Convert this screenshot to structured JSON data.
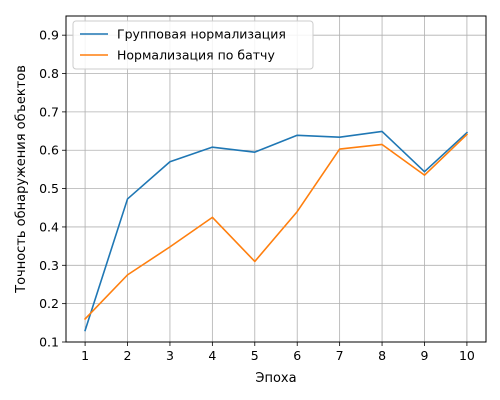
{
  "chart_data": {
    "type": "line",
    "title": "",
    "xlabel": "Эпоха",
    "ylabel": "Точность обнаружения объектов",
    "x": [
      1,
      2,
      3,
      4,
      5,
      6,
      7,
      8,
      9,
      10
    ],
    "x_tick_labels": [
      "1",
      "2",
      "3",
      "4",
      "5",
      "6",
      "7",
      "8",
      "9",
      "10"
    ],
    "xlim": [
      0.55,
      10.45
    ],
    "ylim": [
      0.1,
      0.95
    ],
    "y_ticks": [
      0.1,
      0.2,
      0.3,
      0.4,
      0.5,
      0.6,
      0.7,
      0.8,
      0.9
    ],
    "y_tick_labels": [
      "0.1",
      "0.2",
      "0.3",
      "0.4",
      "0.5",
      "0.6",
      "0.7",
      "0.8",
      "0.9"
    ],
    "grid": true,
    "legend_position": "top-left",
    "series": [
      {
        "name": "Групповая нормализация",
        "color": "#1f77b4",
        "values": [
          0.13,
          0.473,
          0.57,
          0.608,
          0.595,
          0.639,
          0.634,
          0.649,
          0.544,
          0.646
        ]
      },
      {
        "name": "Нормализация по батчу",
        "color": "#ff7f0e",
        "values": [
          0.16,
          0.275,
          0.348,
          0.425,
          0.31,
          0.44,
          0.603,
          0.615,
          0.535,
          0.641
        ]
      }
    ]
  }
}
